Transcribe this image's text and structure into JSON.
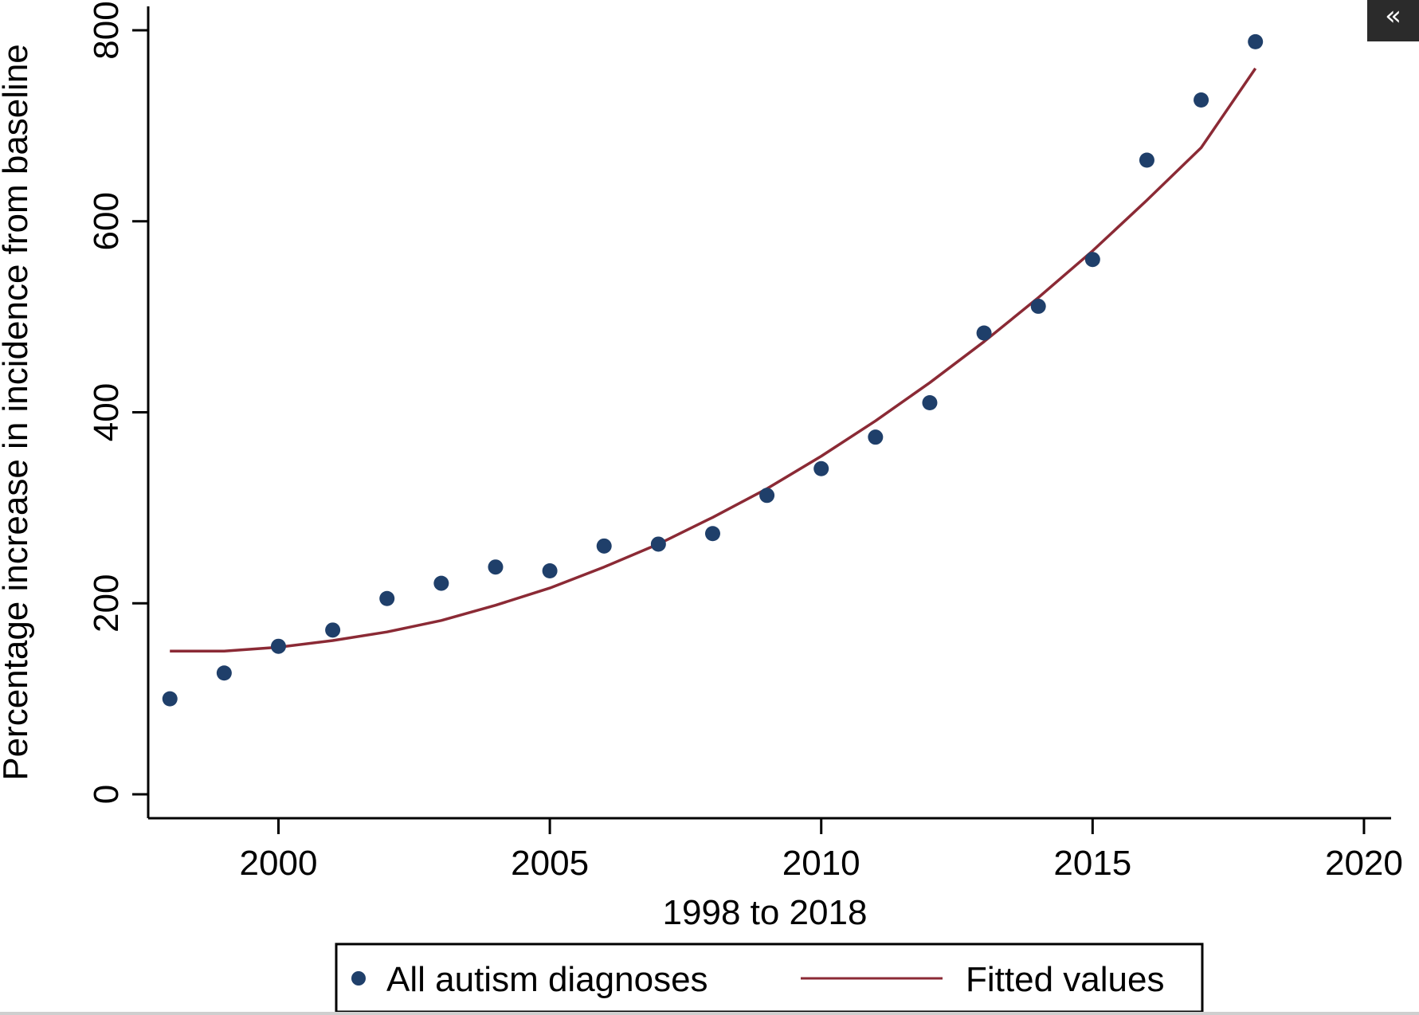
{
  "chart_data": {
    "type": "scatter",
    "title": "",
    "xlabel": "1998 to 2018",
    "ylabel": "Percentage increase in incidence from baseline",
    "xlim": [
      1997.6,
      2020.5
    ],
    "ylim": [
      -25,
      825
    ],
    "x_ticks": [
      2000,
      2005,
      2010,
      2015,
      2020
    ],
    "y_ticks": [
      0,
      200,
      400,
      600,
      800
    ],
    "grid": false,
    "legend_position": "bottom",
    "series": [
      {
        "name": "All autism diagnoses",
        "kind": "scatter",
        "color": "#1f3f6a",
        "x": [
          1998,
          1999,
          2000,
          2001,
          2002,
          2003,
          2004,
          2005,
          2006,
          2007,
          2008,
          2009,
          2010,
          2011,
          2012,
          2013,
          2014,
          2015,
          2016,
          2017,
          2018
        ],
        "y": [
          100,
          127,
          155,
          172,
          205,
          221,
          238,
          234,
          260,
          262,
          273,
          313,
          341,
          374,
          410,
          483,
          511,
          560,
          664,
          727,
          788
        ]
      },
      {
        "name": "Fitted values",
        "kind": "line",
        "color": "#8b2a35",
        "x": [
          1998,
          1999,
          2000,
          2001,
          2002,
          2003,
          2004,
          2005,
          2006,
          2007,
          2008,
          2009,
          2010,
          2011,
          2012,
          2013,
          2014,
          2015,
          2016,
          2017,
          2018
        ],
        "y": [
          150,
          150,
          154,
          161,
          170,
          182,
          198,
          216,
          238,
          262,
          290,
          320,
          354,
          391,
          431,
          474,
          520,
          569,
          622,
          677,
          760
        ]
      }
    ]
  },
  "corner_button": {
    "glyph": "«"
  }
}
